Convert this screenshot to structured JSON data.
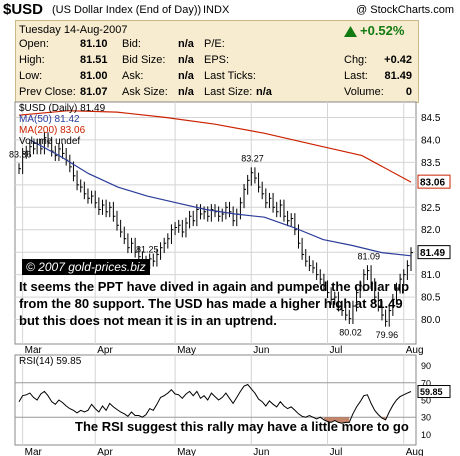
{
  "header": {
    "symbol": "$USD",
    "description": "(US Dollar Index (End of Day))",
    "exchange": "INDX",
    "copyright": "@ StockCharts.com"
  },
  "quote": {
    "date": "Tuesday  14-Aug-2007",
    "open_label": "Open:",
    "open": "81.10",
    "high_label": "High:",
    "high": "81.51",
    "low_label": "Low:",
    "low": "81.00",
    "prev_label": "Prev Close:",
    "prev": "81.07",
    "bid_label": "Bid:",
    "bid": "n/a",
    "bidsize_label": "Bid Size:",
    "bidsize": "n/a",
    "ask_label": "Ask:",
    "ask": "n/a",
    "asksize_label": "Ask Size:",
    "asksize": "n/a",
    "pe_label": "P/E:",
    "eps_label": "EPS:",
    "lastticks_label": "Last Ticks:",
    "lastsize_label": "Last Size:",
    "lastsize": "n/a",
    "change_pct": "+0.52%",
    "chg_label": "Chg:",
    "chg": "+0.42",
    "last_label": "Last:",
    "last": "81.49",
    "volume_label": "Volume:",
    "volume": "0"
  },
  "colors": {
    "ma50": "#2b3c9a",
    "ma200": "#cc2200",
    "price": "#000000",
    "rsi_oversold_fill": "#b87050",
    "quote_bg": "#f7ecd0",
    "change_up": "#117a11"
  },
  "legend": {
    "price": "$USD (Daily) 81.49",
    "ma50": "MA(50) 81.42",
    "ma200": "MA(200) 83.06",
    "volume": "Volume undef"
  },
  "annotations": {
    "source": "© 2007 gold-prices.biz",
    "comment": "It seems the PPT have dived in again and pumped the dollar up from the 80 support. The USD has made a higher high at 81.49 but this does not mean it is in an uptrend.",
    "rsi_comment": "The RSI suggest this rally may have a little more to go"
  },
  "chart_data": [
    {
      "type": "line",
      "panel": "price",
      "ylim": [
        79.5,
        84.8
      ],
      "y_ticks": [
        "80.0",
        "80.5",
        "81.0",
        "81.5",
        "82.0",
        "82.5",
        "83.0",
        "83.5",
        "84.0",
        "84.5"
      ],
      "x_month_labels": [
        "Mar",
        "Apr",
        "May",
        "Jun",
        "Jul",
        "Aug"
      ],
      "x_month_positions": [
        1,
        21,
        43,
        64,
        85,
        106
      ],
      "price_values": [
        83.36,
        83.7,
        83.75,
        83.85,
        83.8,
        83.9,
        83.8,
        84.05,
        83.95,
        83.75,
        83.65,
        83.8,
        83.7,
        83.55,
        83.4,
        83.2,
        83.0,
        82.95,
        82.8,
        82.7,
        82.75,
        82.6,
        82.45,
        82.55,
        82.4,
        82.5,
        82.3,
        82.1,
        81.95,
        81.8,
        81.6,
        81.7,
        81.5,
        81.4,
        81.3,
        81.25,
        81.35,
        81.3,
        81.45,
        81.6,
        81.7,
        81.8,
        82.0,
        82.05,
        82.1,
        81.95,
        82.15,
        82.3,
        82.2,
        82.45,
        82.35,
        82.4,
        82.3,
        82.45,
        82.4,
        82.3,
        82.35,
        82.5,
        82.4,
        82.2,
        82.35,
        82.6,
        82.9,
        83.1,
        83.27,
        83.15,
        82.95,
        82.8,
        82.6,
        82.7,
        82.5,
        82.4,
        82.55,
        82.3,
        82.2,
        82.25,
        82.0,
        81.7,
        81.45,
        81.3,
        81.2,
        81.15,
        81.0,
        80.9,
        80.75,
        80.6,
        80.45,
        80.5,
        80.3,
        80.2,
        80.1,
        80.02,
        80.3,
        80.6,
        80.75,
        81.0,
        81.09,
        80.8,
        80.5,
        80.3,
        80.1,
        79.96,
        80.2,
        80.45,
        80.7,
        80.9,
        81.0,
        81.2,
        81.49
      ],
      "ma50": [
        84.0,
        83.65,
        83.25,
        82.95,
        82.75,
        82.6,
        82.45,
        82.35,
        82.28,
        82.05,
        81.78,
        81.65,
        81.49,
        81.42
      ],
      "ma200": [
        84.55,
        84.65,
        84.62,
        84.5,
        84.35,
        84.15,
        83.9,
        83.65,
        83.06
      ],
      "price_labels": [
        {
          "x": 0,
          "value": 83.36,
          "text": "83.36"
        },
        {
          "x": 35,
          "value": 81.25,
          "text": "81.25"
        },
        {
          "x": 64,
          "value": 83.27,
          "text": "83.27"
        },
        {
          "x": 91,
          "value": 80.02,
          "text": "80.02"
        },
        {
          "x": 96,
          "value": 81.09,
          "text": "81.09"
        },
        {
          "x": 101,
          "value": 79.96,
          "text": "79.96"
        }
      ],
      "last_value_tags": [
        "83.06",
        "81.49"
      ]
    },
    {
      "type": "line",
      "panel": "rsi",
      "ylim": [
        0,
        100
      ],
      "y_ticks": [
        "10",
        "30",
        "50",
        "70",
        "90"
      ],
      "levels": [
        30,
        70
      ],
      "legend": "RSI(14) 59.85",
      "last_value_tag": "59.85",
      "values": [
        48,
        55,
        56,
        58,
        53,
        50,
        57,
        60,
        55,
        48,
        45,
        50,
        47,
        43,
        40,
        38,
        35,
        38,
        36,
        38,
        45,
        40,
        36,
        43,
        38,
        46,
        42,
        39,
        36,
        34,
        31,
        36,
        32,
        32,
        30,
        33,
        40,
        38,
        45,
        53,
        55,
        58,
        62,
        57,
        56,
        52,
        57,
        60,
        55,
        60,
        52,
        55,
        50,
        58,
        54,
        50,
        53,
        58,
        52,
        46,
        53,
        60,
        66,
        68,
        63,
        58,
        51,
        48,
        43,
        49,
        45,
        42,
        48,
        43,
        40,
        42,
        38,
        34,
        31,
        30,
        32,
        30,
        28,
        30,
        27,
        25,
        24,
        26,
        24,
        23,
        24,
        24,
        34,
        42,
        48,
        55,
        56,
        46,
        38,
        33,
        29,
        27,
        36,
        44,
        50,
        54,
        56,
        58,
        59.85
      ]
    }
  ]
}
